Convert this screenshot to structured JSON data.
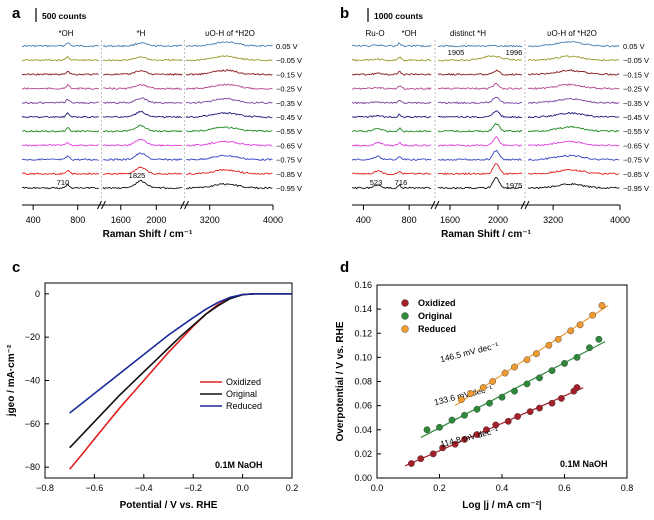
{
  "chart_data": [
    {
      "panel": "a",
      "type": "line",
      "title": "",
      "scale_bar": "500 counts",
      "xlabel": "Raman Shift / cm⁻¹",
      "x_segments": [
        {
          "range": [
            300,
            1000
          ],
          "ticks": [
            400,
            800
          ]
        },
        {
          "range": [
            1400,
            2300
          ],
          "ticks": [
            1600,
            2000
          ]
        },
        {
          "range": [
            2900,
            4000
          ],
          "ticks": [
            3200,
            4000
          ]
        }
      ],
      "region_labels": [
        "*OH",
        "*H",
        "υO-H of *H2O"
      ],
      "peak_labels": [
        {
          "x": 710,
          "text": "710"
        },
        {
          "x": 1825,
          "text": "1825"
        }
      ],
      "series": [
        {
          "name": "0.05 V",
          "color": "#4a7fb0"
        },
        {
          "name": "-0.05 V",
          "color": "#9a9a2c"
        },
        {
          "name": "-0.15 V",
          "color": "#8b1a1a"
        },
        {
          "name": "-0.25 V",
          "color": "#b2478f"
        },
        {
          "name": "-0.35 V",
          "color": "#7b3fa0"
        },
        {
          "name": "-0.45 V",
          "color": "#1c1c7a"
        },
        {
          "name": "-0.55 V",
          "color": "#1d8a1d"
        },
        {
          "name": "-0.65 V",
          "color": "#e040e0"
        },
        {
          "name": "-0.75 V",
          "color": "#3a44c4"
        },
        {
          "name": "-0.85 V",
          "color": "#e02020"
        },
        {
          "name": "-0.95 V",
          "color": "#111111"
        }
      ]
    },
    {
      "panel": "b",
      "type": "line",
      "title": "",
      "scale_bar": "1000 counts",
      "xlabel": "Raman Shift / cm⁻¹",
      "x_segments": [
        {
          "range": [
            300,
            1000
          ],
          "ticks": [
            400,
            800
          ]
        },
        {
          "range": [
            1500,
            2200
          ],
          "ticks": [
            1600,
            2000
          ]
        },
        {
          "range": [
            2900,
            4000
          ],
          "ticks": [
            3200,
            4000
          ]
        }
      ],
      "region_labels": [
        "Ru-O",
        "*OH",
        "distinct *H",
        "υO-H of *H2O"
      ],
      "peak_labels": [
        {
          "x": 523,
          "text": "523"
        },
        {
          "x": 716,
          "text": "716"
        },
        {
          "x": 1905,
          "text": "1905"
        },
        {
          "x": 1996,
          "text": "1996"
        },
        {
          "x": 1975,
          "text": "1975"
        }
      ],
      "series_names": [
        "0.05 V",
        "-0.05 V",
        "-0.15 V",
        "-0.25 V",
        "-0.35 V",
        "-0.45 V",
        "-0.55 V",
        "-0.65 V",
        "-0.75 V",
        "-0.85 V",
        "-0.95 V"
      ]
    },
    {
      "panel": "c",
      "type": "line",
      "xlabel": "Potential / V vs. RHE",
      "ylabel": "jgeo / mA·cm⁻²",
      "xlim": [
        -0.8,
        0.2
      ],
      "ylim": [
        -85,
        5
      ],
      "xticks": [
        -0.8,
        -0.6,
        -0.4,
        -0.2,
        0.0,
        0.2
      ],
      "yticks": [
        0,
        -20,
        -40,
        -60,
        -80
      ],
      "xtick_labels": [
        "−0.8",
        "−0.6",
        "−0.4",
        "−0.2",
        "0.0",
        "0.2"
      ],
      "ytick_labels": [
        "0",
        "−20",
        "−40",
        "−60",
        "−80"
      ],
      "annotation": "0.1M NaOH",
      "series": [
        {
          "name": "Oxidized",
          "color": "#e02020",
          "x": [
            -0.7,
            -0.65,
            -0.6,
            -0.55,
            -0.5,
            -0.45,
            -0.4,
            -0.35,
            -0.3,
            -0.25,
            -0.2,
            -0.15,
            -0.1,
            -0.05,
            0.0,
            0.05,
            0.1,
            0.15,
            0.2
          ],
          "y": [
            -81,
            -74,
            -67,
            -60,
            -53,
            -46.5,
            -40,
            -33.5,
            -27,
            -21,
            -15,
            -9.5,
            -5,
            -1.8,
            -0.3,
            0,
            0,
            0,
            0
          ]
        },
        {
          "name": "Original",
          "color": "#111111",
          "x": [
            -0.7,
            -0.65,
            -0.6,
            -0.55,
            -0.5,
            -0.45,
            -0.4,
            -0.35,
            -0.3,
            -0.25,
            -0.2,
            -0.15,
            -0.1,
            -0.05,
            0.0,
            0.05,
            0.1,
            0.15,
            0.2
          ],
          "y": [
            -71,
            -65,
            -59,
            -53,
            -47,
            -41.5,
            -36,
            -30.5,
            -25,
            -19.5,
            -14.5,
            -9.5,
            -5.5,
            -2.2,
            -0.4,
            0,
            0,
            0,
            0
          ]
        },
        {
          "name": "Reduced",
          "color": "#1a2a9a",
          "x": [
            -0.7,
            -0.65,
            -0.6,
            -0.55,
            -0.5,
            -0.45,
            -0.4,
            -0.35,
            -0.3,
            -0.25,
            -0.2,
            -0.15,
            -0.1,
            -0.05,
            0.0,
            0.05,
            0.1,
            0.15,
            0.2
          ],
          "y": [
            -55,
            -50.5,
            -46,
            -41.5,
            -37,
            -32.5,
            -28,
            -23.5,
            -19,
            -15,
            -11,
            -7.2,
            -4,
            -1.6,
            -0.3,
            0,
            0,
            0,
            0
          ]
        }
      ]
    },
    {
      "panel": "d",
      "type": "scatter",
      "xlabel": "Log |j / mA cm⁻²|",
      "ylabel": "Overpotential / V vs. RHE",
      "xlim": [
        0.0,
        0.8
      ],
      "ylim": [
        0.0,
        0.16
      ],
      "xticks": [
        0.0,
        0.2,
        0.4,
        0.6,
        0.8
      ],
      "yticks": [
        0.0,
        0.02,
        0.04,
        0.06,
        0.08,
        0.1,
        0.12,
        0.14,
        0.16
      ],
      "xtick_labels": [
        "0.0",
        "0.2",
        "0.4",
        "0.6",
        "0.8"
      ],
      "ytick_labels": [
        "0.00",
        "0.02",
        "0.04",
        "0.06",
        "0.08",
        "0.10",
        "0.12",
        "0.14",
        "0.16"
      ],
      "annotation": "0.1M NaOH",
      "series": [
        {
          "name": "Oxidized",
          "color": "#a3202a",
          "slope_label": "114.8 mV dec⁻¹",
          "x": [
            0.11,
            0.14,
            0.18,
            0.21,
            0.25,
            0.28,
            0.32,
            0.35,
            0.38,
            0.42,
            0.45,
            0.49,
            0.52,
            0.56,
            0.59,
            0.63,
            0.64
          ],
          "y": [
            0.012,
            0.016,
            0.02,
            0.025,
            0.028,
            0.032,
            0.036,
            0.04,
            0.044,
            0.047,
            0.051,
            0.055,
            0.058,
            0.062,
            0.066,
            0.072,
            0.075
          ]
        },
        {
          "name": "Original",
          "color": "#2e8a3a",
          "slope_label": "133.6 mV dec⁻¹",
          "x": [
            0.16,
            0.2,
            0.24,
            0.28,
            0.32,
            0.36,
            0.4,
            0.44,
            0.48,
            0.52,
            0.56,
            0.6,
            0.64,
            0.68,
            0.71
          ],
          "y": [
            0.04,
            0.042,
            0.048,
            0.052,
            0.057,
            0.062,
            0.067,
            0.072,
            0.078,
            0.083,
            0.089,
            0.095,
            0.1,
            0.108,
            0.115
          ]
        },
        {
          "name": "Reduced",
          "color": "#f09a30",
          "slope_label": "146.5 mV dec⁻¹",
          "x": [
            0.27,
            0.3,
            0.34,
            0.37,
            0.41,
            0.44,
            0.48,
            0.51,
            0.55,
            0.58,
            0.62,
            0.65,
            0.69,
            0.72
          ],
          "y": [
            0.065,
            0.07,
            0.075,
            0.08,
            0.087,
            0.092,
            0.098,
            0.103,
            0.11,
            0.115,
            0.122,
            0.127,
            0.135,
            0.143
          ]
        }
      ]
    }
  ]
}
